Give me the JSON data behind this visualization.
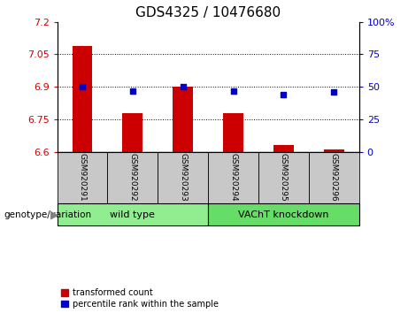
{
  "title": "GDS4325 / 10476680",
  "samples": [
    "GSM920291",
    "GSM920292",
    "GSM920293",
    "GSM920294",
    "GSM920295",
    "GSM920296"
  ],
  "transformed_counts": [
    7.09,
    6.78,
    6.9,
    6.78,
    6.63,
    6.61
  ],
  "percentile_ranks": [
    50,
    47,
    50,
    47,
    44,
    46
  ],
  "ylim_left": [
    6.6,
    7.2
  ],
  "ylim_right": [
    0,
    100
  ],
  "yticks_left": [
    6.6,
    6.75,
    6.9,
    7.05,
    7.2
  ],
  "yticks_right": [
    0,
    25,
    50,
    75,
    100
  ],
  "ytick_labels_right": [
    "0",
    "25",
    "50",
    "75",
    "100%"
  ],
  "bar_color": "#cc0000",
  "dot_color": "#0000cc",
  "bar_width": 0.4,
  "groups": [
    {
      "label": "wild type",
      "indices": [
        0,
        1,
        2
      ],
      "color": "#90ee90"
    },
    {
      "label": "VAChT knockdown",
      "indices": [
        3,
        4,
        5
      ],
      "color": "#66dd66"
    }
  ],
  "genotype_label": "genotype/variation",
  "legend_items": [
    {
      "label": "transformed count",
      "color": "#cc0000"
    },
    {
      "label": "percentile rank within the sample",
      "color": "#0000cc"
    }
  ],
  "sample_box_color": "#c8c8c8",
  "title_fontsize": 11,
  "tick_fontsize": 8,
  "label_fontsize": 7
}
